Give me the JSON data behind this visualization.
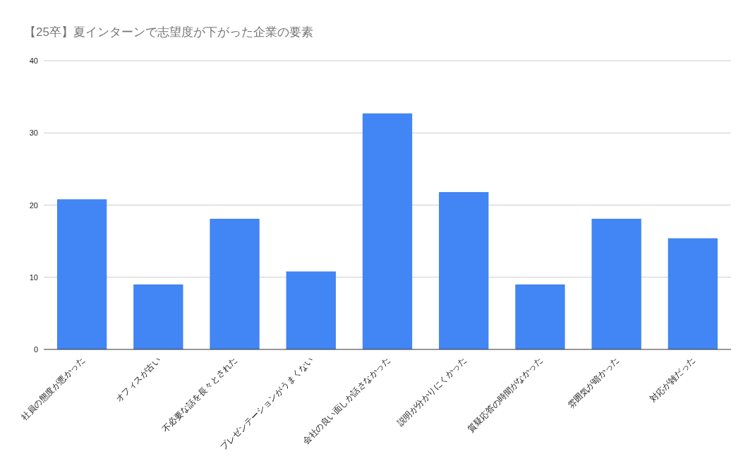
{
  "chart_data": {
    "type": "bar",
    "title": "【25卒】夏インターンで志望度が下がった企業の要素",
    "categories": [
      "社員の態度が悪かった",
      "オフィスが古い",
      "不必要な話を長々とされた",
      "プレゼンテーションがうまくない",
      "会社の良い面しか話さなかった",
      "説明が分かりにくかった",
      "質疑応答の時間がなかった",
      "雰囲気が暗かった",
      "対応が雑だった"
    ],
    "values": [
      20.8,
      9.0,
      18.1,
      10.8,
      32.7,
      21.8,
      9.0,
      18.1,
      15.4
    ],
    "color": "#4285f4",
    "ylim": [
      0,
      40
    ],
    "yticks": [
      0,
      10,
      20,
      30,
      40
    ],
    "grid": "y"
  }
}
